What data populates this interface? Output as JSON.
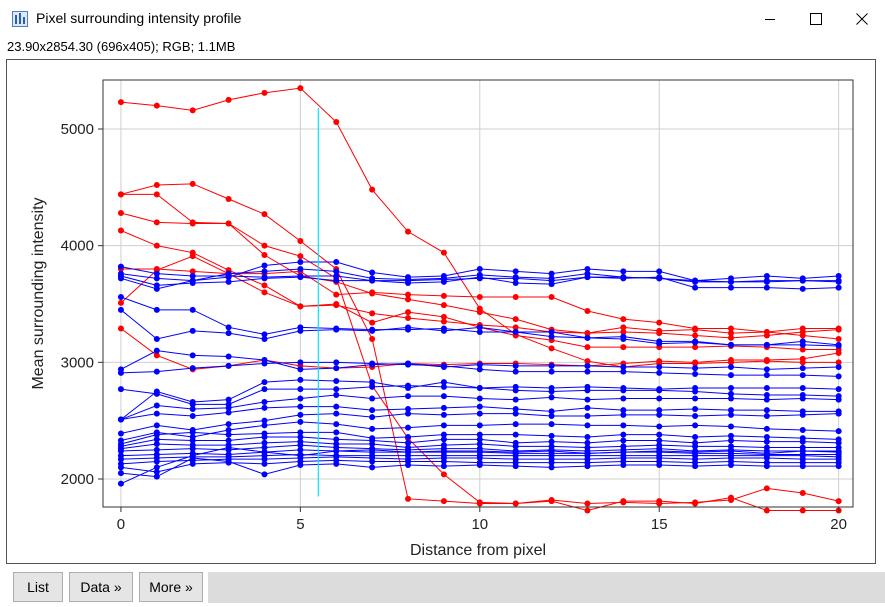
{
  "window": {
    "title": "Pixel surrounding intensity profile",
    "image_info": "23.90x2854.30   (696x405); RGB; 1.1MB"
  },
  "buttons": {
    "list": "List",
    "data": "Data »",
    "more": "More »"
  },
  "chart_data": {
    "type": "line",
    "xlabel": "Distance from pixel",
    "ylabel": "Mean surrounding intensity",
    "xlim": [
      -0.5,
      20.4
    ],
    "ylim": [
      1760,
      5420
    ],
    "x_ticks": [
      0,
      5,
      10,
      15,
      20
    ],
    "y_ticks": [
      2000,
      3000,
      4000,
      5000
    ],
    "grid": true,
    "marker_line": {
      "x": 5.5,
      "y_from": 1850,
      "y_to": 5180,
      "color": "#00e5ff"
    },
    "x": [
      0,
      1,
      2,
      3,
      4,
      5,
      6,
      7,
      8,
      9,
      10,
      11,
      12,
      13,
      14,
      15,
      16,
      17,
      18,
      19,
      20
    ],
    "series": [
      {
        "color": "#ff0000",
        "values": [
          5230,
          5200,
          5160,
          5250,
          5310,
          5350,
          5060,
          4480,
          4120,
          3940,
          3460,
          3240,
          3120,
          3010,
          2960,
          2990,
          2990,
          3000,
          3010,
          3000,
          3000
        ]
      },
      {
        "color": "#ff0000",
        "values": [
          4440,
          4520,
          4530,
          4400,
          4270,
          4040,
          3800,
          3200,
          1830,
          1810,
          1790,
          1790,
          1820,
          1790,
          1800,
          1790,
          1800,
          1820,
          1920,
          1880,
          1810
        ]
      },
      {
        "color": "#ff0000",
        "values": [
          4440,
          4440,
          4200,
          4190,
          4000,
          3910,
          3720,
          2800,
          2350,
          2040,
          1800,
          1790,
          1810,
          1730,
          1810,
          1810,
          1790,
          1840,
          1730,
          1730,
          1730
        ]
      },
      {
        "color": "#ff0000",
        "values": [
          4280,
          4200,
          4190,
          4190,
          3920,
          3740,
          3690,
          3590,
          3540,
          3490,
          3430,
          3370,
          3280,
          3250,
          3260,
          3250,
          3230,
          3210,
          3230,
          3260,
          3280
        ]
      },
      {
        "color": "#ff0000",
        "values": [
          4130,
          4000,
          3940,
          3790,
          3660,
          3480,
          3490,
          3420,
          3380,
          3350,
          3320,
          3300,
          3260,
          3250,
          3300,
          3270,
          3280,
          3250,
          3260,
          3230,
          3200
        ]
      },
      {
        "color": "#ff0000",
        "values": [
          3510,
          3790,
          3910,
          3760,
          3600,
          3480,
          3500,
          3340,
          3430,
          3390,
          3300,
          3230,
          3190,
          3130,
          3130,
          3130,
          3130,
          3140,
          3130,
          3110,
          3110
        ]
      },
      {
        "color": "#ff0000",
        "values": [
          3290,
          3060,
          2940,
          2970,
          3020,
          2970,
          2950,
          2960,
          2990,
          2980,
          2990,
          2990,
          2980,
          2970,
          2990,
          3010,
          3000,
          3020,
          3020,
          3030,
          3080
        ]
      },
      {
        "color": "#ff0000",
        "values": [
          3800,
          3800,
          3780,
          3760,
          3760,
          3780,
          3580,
          3600,
          3580,
          3570,
          3560,
          3560,
          3560,
          3440,
          3370,
          3340,
          3290,
          3290,
          3260,
          3290,
          3290
        ]
      },
      {
        "color": "#0000ff",
        "values": [
          3820,
          3760,
          3740,
          3740,
          3730,
          3740,
          3740,
          3700,
          3700,
          3710,
          3720,
          3720,
          3700,
          3730,
          3730,
          3720,
          3700,
          3690,
          3700,
          3700,
          3690
        ]
      },
      {
        "color": "#0000ff",
        "values": [
          3760,
          3720,
          3700,
          3730,
          3830,
          3860,
          3860,
          3770,
          3730,
          3740,
          3800,
          3780,
          3760,
          3800,
          3780,
          3780,
          3700,
          3720,
          3740,
          3720,
          3740
        ]
      },
      {
        "color": "#0000ff",
        "values": [
          3740,
          3660,
          3680,
          3690,
          3720,
          3730,
          3700,
          3700,
          3680,
          3690,
          3730,
          3680,
          3670,
          3730,
          3720,
          3730,
          3640,
          3640,
          3640,
          3630,
          3640
        ]
      },
      {
        "color": "#0000ff",
        "values": [
          3720,
          3630,
          3700,
          3760,
          3780,
          3800,
          3780,
          3720,
          3710,
          3720,
          3750,
          3730,
          3720,
          3760,
          3730,
          3720,
          3690,
          3690,
          3690,
          3700,
          3700
        ]
      },
      {
        "color": "#0000ff",
        "values": [
          3560,
          3450,
          3450,
          3300,
          3240,
          3300,
          3290,
          3280,
          3280,
          3290,
          3260,
          3260,
          3220,
          3210,
          3220,
          3180,
          3180,
          3150,
          3150,
          3150,
          3140
        ]
      },
      {
        "color": "#0000ff",
        "values": [
          3450,
          3200,
          3270,
          3250,
          3200,
          3270,
          3280,
          3270,
          3300,
          3270,
          3300,
          3260,
          3260,
          3210,
          3200,
          3160,
          3170,
          3150,
          3150,
          3180,
          3150
        ]
      },
      {
        "color": "#0000ff",
        "values": [
          2940,
          3100,
          3060,
          3050,
          3020,
          2940,
          2950,
          2980,
          2990,
          2960,
          2980,
          2970,
          2970,
          2970,
          2960,
          2960,
          2950,
          2960,
          2940,
          2950,
          2960
        ]
      },
      {
        "color": "#0000ff",
        "values": [
          2910,
          2920,
          2950,
          2970,
          2990,
          3000,
          3000,
          2990,
          2980,
          2970,
          2940,
          2920,
          2920,
          2920,
          2920,
          2910,
          2900,
          2890,
          2890,
          2890,
          2880
        ]
      },
      {
        "color": "#0000ff",
        "values": [
          2770,
          2730,
          2640,
          2640,
          2770,
          2770,
          2770,
          2790,
          2800,
          2790,
          2780,
          2790,
          2780,
          2790,
          2780,
          2770,
          2780,
          2780,
          2780,
          2780,
          2770
        ]
      },
      {
        "color": "#0000ff",
        "values": [
          2510,
          2750,
          2660,
          2680,
          2830,
          2850,
          2840,
          2830,
          2780,
          2830,
          2780,
          2760,
          2750,
          2760,
          2760,
          2760,
          2750,
          2730,
          2720,
          2720,
          2710
        ]
      },
      {
        "color": "#0000ff",
        "values": [
          2510,
          2630,
          2600,
          2610,
          2660,
          2690,
          2720,
          2690,
          2710,
          2710,
          2690,
          2680,
          2700,
          2680,
          2690,
          2690,
          2690,
          2690,
          2680,
          2690,
          2680
        ]
      },
      {
        "color": "#0000ff",
        "values": [
          2510,
          2560,
          2540,
          2570,
          2610,
          2620,
          2620,
          2590,
          2600,
          2610,
          2620,
          2600,
          2580,
          2610,
          2590,
          2590,
          2600,
          2590,
          2590,
          2580,
          2580
        ]
      },
      {
        "color": "#0000ff",
        "values": [
          2390,
          2460,
          2420,
          2470,
          2500,
          2550,
          2560,
          2530,
          2560,
          2550,
          2560,
          2560,
          2540,
          2540,
          2550,
          2550,
          2540,
          2550,
          2540,
          2550,
          2560
        ]
      },
      {
        "color": "#0000ff",
        "values": [
          2330,
          2400,
          2360,
          2420,
          2460,
          2490,
          2470,
          2430,
          2440,
          2460,
          2460,
          2470,
          2470,
          2460,
          2460,
          2450,
          2460,
          2450,
          2430,
          2420,
          2410
        ]
      },
      {
        "color": "#0000ff",
        "values": [
          2300,
          2380,
          2400,
          2380,
          2390,
          2400,
          2400,
          2350,
          2360,
          2380,
          2380,
          2380,
          2370,
          2360,
          2380,
          2380,
          2360,
          2370,
          2360,
          2350,
          2340
        ]
      },
      {
        "color": "#0000ff",
        "values": [
          2280,
          2340,
          2330,
          2330,
          2360,
          2360,
          2340,
          2330,
          2310,
          2340,
          2340,
          2310,
          2320,
          2310,
          2330,
          2330,
          2310,
          2330,
          2320,
          2320,
          2310
        ]
      },
      {
        "color": "#0000ff",
        "values": [
          2260,
          2300,
          2290,
          2290,
          2310,
          2320,
          2300,
          2300,
          2270,
          2290,
          2300,
          2280,
          2280,
          2270,
          2280,
          2290,
          2280,
          2280,
          2270,
          2270,
          2270
        ]
      },
      {
        "color": "#0000ff",
        "values": [
          2240,
          2250,
          2260,
          2250,
          2270,
          2290,
          2270,
          2260,
          2250,
          2260,
          2260,
          2240,
          2250,
          2240,
          2250,
          2260,
          2240,
          2250,
          2240,
          2240,
          2240
        ]
      },
      {
        "color": "#0000ff",
        "values": [
          2200,
          2210,
          2220,
          2210,
          2230,
          2250,
          2240,
          2230,
          2230,
          2230,
          2230,
          2220,
          2220,
          2220,
          2230,
          2230,
          2220,
          2220,
          2210,
          2210,
          2210
        ]
      },
      {
        "color": "#0000ff",
        "values": [
          2170,
          2180,
          2190,
          2190,
          2200,
          2210,
          2200,
          2200,
          2200,
          2200,
          2200,
          2200,
          2200,
          2200,
          2200,
          2200,
          2200,
          2200,
          2200,
          2200,
          2190
        ]
      },
      {
        "color": "#0000ff",
        "values": [
          2130,
          2150,
          2160,
          2170,
          2170,
          2180,
          2190,
          2180,
          2170,
          2180,
          2180,
          2170,
          2170,
          2170,
          2180,
          2180,
          2170,
          2180,
          2180,
          2170,
          2170
        ]
      },
      {
        "color": "#0000ff",
        "values": [
          2100,
          2060,
          2130,
          2140,
          2130,
          2150,
          2160,
          2150,
          2150,
          2150,
          2140,
          2140,
          2140,
          2140,
          2150,
          2150,
          2140,
          2150,
          2140,
          2140,
          2140
        ]
      },
      {
        "color": "#0000ff",
        "values": [
          2050,
          2020,
          2180,
          2150,
          2040,
          2120,
          2130,
          2100,
          2120,
          2110,
          2120,
          2110,
          2100,
          2110,
          2120,
          2120,
          2110,
          2120,
          2110,
          2110,
          2110
        ]
      },
      {
        "color": "#0000ff",
        "values": [
          1960,
          2100,
          2200,
          2270,
          2230,
          2200,
          2240,
          2250,
          2230,
          2240,
          2240,
          2230,
          2240,
          2220,
          2230,
          2240,
          2230,
          2240,
          2220,
          2240,
          2230
        ]
      }
    ]
  }
}
